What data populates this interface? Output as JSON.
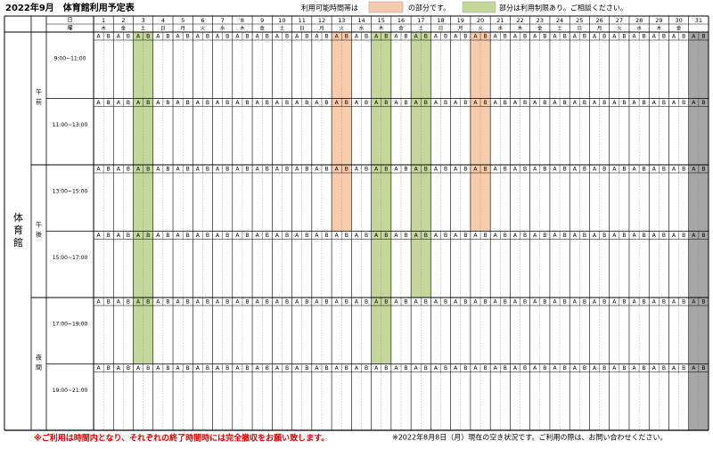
{
  "header": {
    "title": "2022年9月　体育館利用予定表",
    "legend": {
      "before": "利用可能時間帯は",
      "available": "の部分です。",
      "restricted": "部分は利用制限あり。ご相談ください。"
    }
  },
  "table": {
    "facility": "体育館",
    "day_label": "日",
    "weekday_label": "曜",
    "days": [
      1,
      2,
      3,
      4,
      5,
      6,
      7,
      8,
      9,
      10,
      11,
      12,
      13,
      14,
      15,
      16,
      17,
      18,
      19,
      20,
      21,
      22,
      23,
      24,
      25,
      26,
      27,
      28,
      29,
      30,
      31
    ],
    "weekdays": [
      "木",
      "金",
      "土",
      "日",
      "月",
      "火",
      "水",
      "木",
      "金",
      "土",
      "日",
      "月",
      "火",
      "水",
      "木",
      "金",
      "土",
      "日",
      "月",
      "火",
      "水",
      "木",
      "金",
      "土",
      "日",
      "月",
      "火",
      "水",
      "木",
      "金"
    ],
    "sub_labels": [
      "A",
      "B"
    ],
    "colors": {
      "o": "#f8cbad",
      "g": "#c4d79b",
      "x": "#a6a6a6"
    },
    "periods": [
      {
        "label": "午前",
        "slots": [
          {
            "time": "9:00~11:00",
            "fills": [
              null,
              null,
              "g",
              null,
              null,
              null,
              null,
              null,
              null,
              null,
              null,
              null,
              "o",
              null,
              "g",
              null,
              "g",
              null,
              null,
              "o",
              null,
              null,
              null,
              null,
              null,
              null,
              null,
              null,
              null,
              null,
              "x"
            ]
          },
          {
            "time": "11:00~13:00",
            "fills": [
              null,
              null,
              "g",
              null,
              null,
              null,
              null,
              null,
              null,
              null,
              null,
              null,
              "o",
              null,
              "g",
              null,
              "g",
              null,
              null,
              "o",
              null,
              null,
              null,
              null,
              null,
              null,
              null,
              null,
              null,
              null,
              "x"
            ]
          }
        ]
      },
      {
        "label": "午後",
        "slots": [
          {
            "time": "13:00~15:00",
            "fills": [
              null,
              null,
              "g",
              null,
              null,
              null,
              null,
              null,
              null,
              null,
              null,
              null,
              "o",
              null,
              "g",
              null,
              "g",
              null,
              null,
              "o",
              null,
              null,
              null,
              null,
              null,
              null,
              null,
              null,
              null,
              null,
              "x"
            ]
          },
          {
            "time": "15:00~17:00",
            "fills": [
              null,
              null,
              "g",
              null,
              null,
              null,
              null,
              null,
              null,
              null,
              null,
              null,
              null,
              null,
              "g",
              null,
              "g",
              null,
              null,
              null,
              null,
              null,
              null,
              null,
              null,
              null,
              null,
              null,
              null,
              null,
              "x"
            ]
          }
        ]
      },
      {
        "label": "夜間",
        "slots": [
          {
            "time": "17:00~19:00",
            "fills": [
              null,
              null,
              "g",
              null,
              null,
              null,
              null,
              null,
              null,
              null,
              null,
              null,
              null,
              null,
              "g",
              null,
              null,
              null,
              null,
              null,
              null,
              null,
              null,
              null,
              null,
              null,
              null,
              null,
              null,
              null,
              "x"
            ]
          },
          {
            "time": "19:00~21:00",
            "fills": [
              null,
              null,
              null,
              null,
              null,
              null,
              null,
              null,
              null,
              null,
              null,
              null,
              null,
              null,
              null,
              null,
              null,
              null,
              null,
              null,
              null,
              null,
              null,
              null,
              null,
              null,
              null,
              null,
              null,
              null,
              "x"
            ]
          }
        ]
      }
    ]
  },
  "footer": {
    "warning": "※ご利用は時間内となり、それぞれの終了時間時には完全撤収をお願い致します。",
    "note": "※2022年8月8日（月）現在の空き状況です。ご利用の際は、お問い合わせください。"
  }
}
